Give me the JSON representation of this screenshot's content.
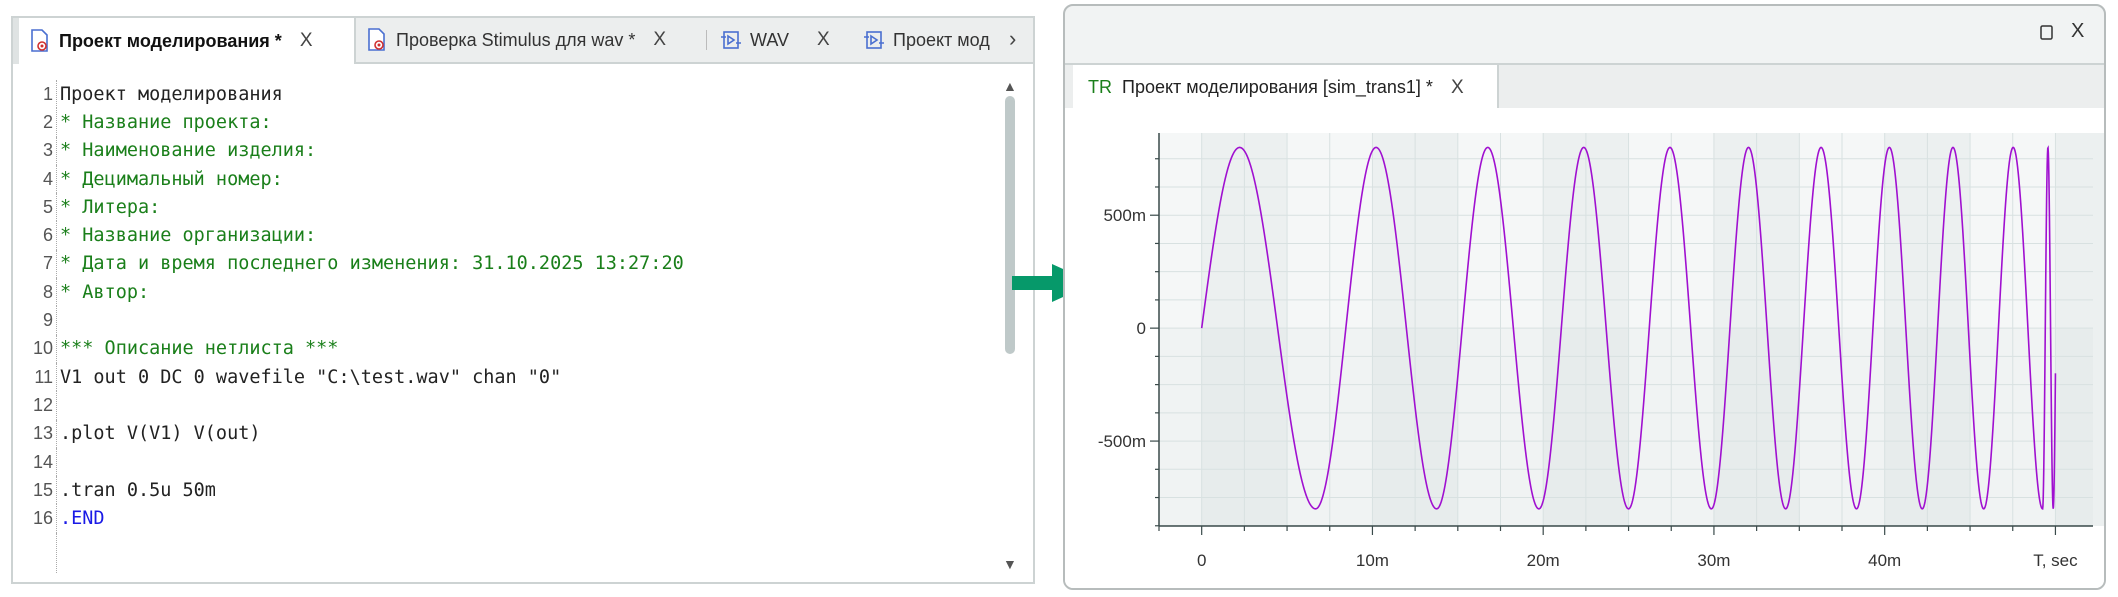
{
  "editor": {
    "tabs": [
      {
        "label": "Проект моделирования *",
        "icon": "netlist-file-icon",
        "active": true
      },
      {
        "label": "Проверка Stimulus для wav *",
        "icon": "netlist-file-icon",
        "active": false
      },
      {
        "label": "WAV",
        "icon": "stimulus-icon",
        "active": false
      },
      {
        "label": "Проект мод",
        "icon": "stimulus-icon",
        "active": false
      }
    ],
    "close_glyph": "X",
    "lines": [
      {
        "n": "1",
        "text": "Проект моделирования",
        "kind": "plain"
      },
      {
        "n": "2",
        "text": "* Название проекта:",
        "kind": "comment"
      },
      {
        "n": "3",
        "text": "* Наименование изделия:",
        "kind": "comment"
      },
      {
        "n": "4",
        "text": "* Децимальный номер:",
        "kind": "comment"
      },
      {
        "n": "5",
        "text": "* Литера:",
        "kind": "comment"
      },
      {
        "n": "6",
        "text": "* Название организации:",
        "kind": "comment"
      },
      {
        "n": "7",
        "text": "* Дата и время последнего изменения: 31.10.2025 13:27:20",
        "kind": "comment"
      },
      {
        "n": "8",
        "text": "* Автор:",
        "kind": "comment"
      },
      {
        "n": "9",
        "text": "",
        "kind": "plain"
      },
      {
        "n": "10",
        "text": "*** Описание нетлиста ***",
        "kind": "comment"
      },
      {
        "n": "11",
        "text": "V1 out 0 DC 0 wavefile \"C:\\test.wav\" chan \"0\"",
        "kind": "plain"
      },
      {
        "n": "12",
        "text": "",
        "kind": "plain"
      },
      {
        "n": "13",
        "text": ".plot V(V1) V(out)",
        "kind": "plain"
      },
      {
        "n": "14",
        "text": "",
        "kind": "plain"
      },
      {
        "n": "15",
        "text": ".tran 0.5u 50m",
        "kind": "plain"
      },
      {
        "n": "16",
        "text": ".END",
        "kind": "keyword"
      }
    ]
  },
  "result_window": {
    "tab": {
      "prefix": "TR",
      "label": "Проект моделирования [sim_trans1] *"
    },
    "close_glyph": "X"
  },
  "colors": {
    "comment": "#1a7f1a",
    "keyword": "#1a1ae6",
    "trace": "#a010d0",
    "arrow": "#06996a"
  },
  "chart_data": {
    "type": "line",
    "xlabel": "T, sec",
    "ylabel": "",
    "xlim": [
      -0.0025,
      0.0522
    ],
    "ylim": [
      -0.876,
      0.864
    ],
    "x_ticks": [
      {
        "v": 0,
        "label": "0"
      },
      {
        "v": 0.01,
        "label": "10m"
      },
      {
        "v": 0.02,
        "label": "20m"
      },
      {
        "v": 0.03,
        "label": "30m"
      },
      {
        "v": 0.04,
        "label": "40m"
      },
      {
        "v": 0.05,
        "label": "T, sec"
      }
    ],
    "y_ticks": [
      {
        "v": 0.5,
        "label": "500m"
      },
      {
        "v": 0,
        "label": "0"
      },
      {
        "v": -0.5,
        "label": "-500m"
      }
    ],
    "grid": true,
    "series": [
      {
        "description_kind": "swept sine",
        "amplitude": 0.8,
        "t_start": 0,
        "t_end": 0.05,
        "trough_times": [
          0.00667,
          0.01376,
          0.01975,
          0.025,
          0.02985,
          0.0342,
          0.03835,
          0.0422,
          0.0458,
          0.04925
        ],
        "value_at_end": -0.2
      }
    ]
  }
}
